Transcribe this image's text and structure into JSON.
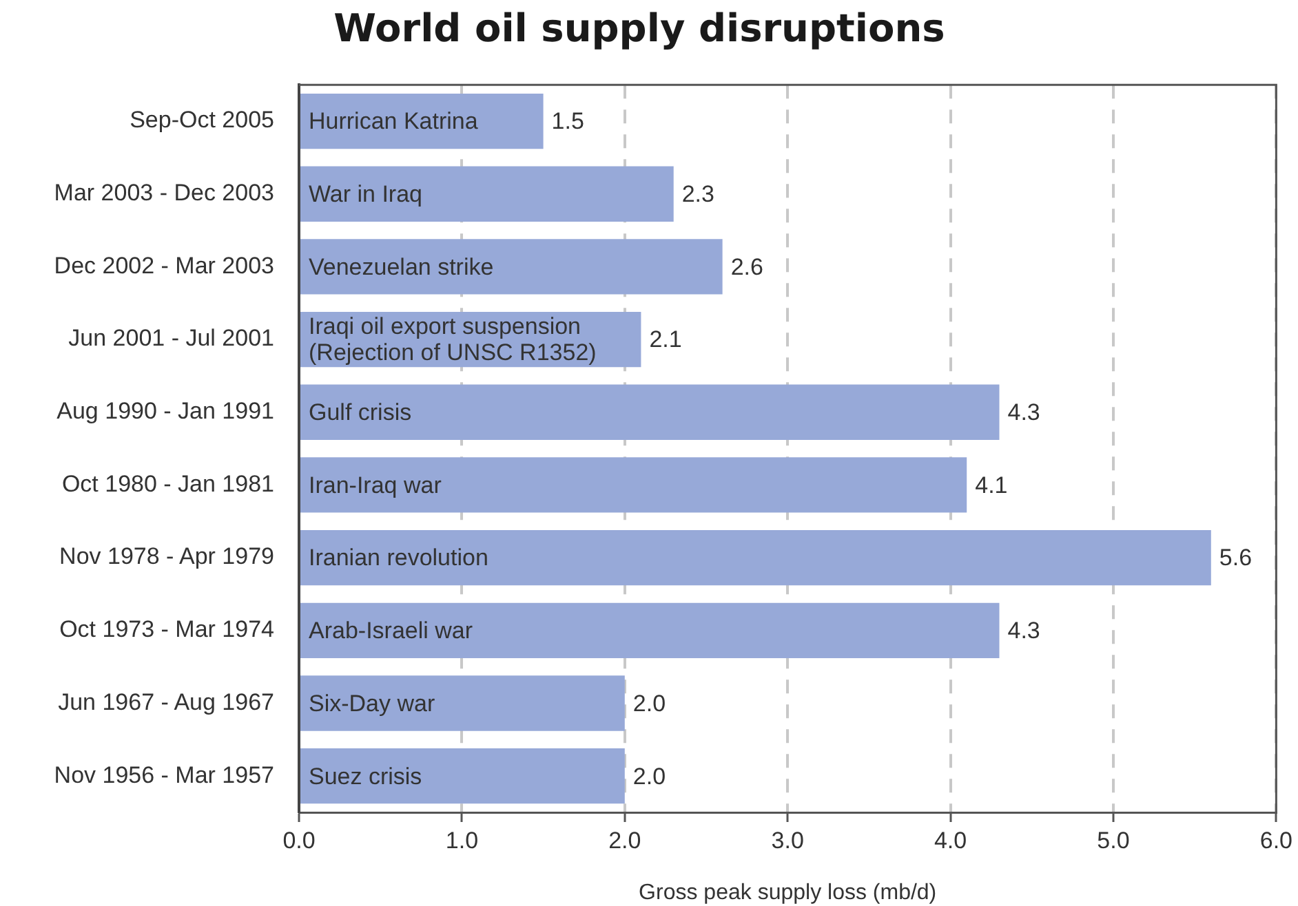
{
  "chart_data": {
    "type": "bar",
    "orientation": "horizontal",
    "title": "World oil supply disruptions",
    "xlabel": "Gross peak supply loss (mb/d)",
    "categories": [
      "Sep-Oct 2005",
      "Mar 2003 - Dec 2003",
      "Dec 2002 - Mar 2003",
      "Jun 2001 - Jul 2001",
      "Aug 1990 - Jan 1991",
      "Oct 1980 - Jan 1981",
      "Nov 1978 - Apr 1979",
      "Oct 1973 - Mar 1974",
      "Jun 1967 - Aug 1967",
      "Nov 1956 - Mar 1957"
    ],
    "values": [
      1.5,
      2.3,
      2.6,
      2.1,
      4.3,
      4.1,
      5.6,
      4.3,
      2.0,
      2.0
    ],
    "value_labels": [
      "1.5",
      "2.3",
      "2.6",
      "2.1",
      "4.3",
      "4.1",
      "5.6",
      "4.3",
      "2.0",
      "2.0"
    ],
    "color": "#97a9d8",
    "xlim": [
      0,
      6
    ],
    "xticks": [
      {
        "value": 0,
        "label": "0.0"
      },
      {
        "value": 1,
        "label": "1.0"
      },
      {
        "value": 2,
        "label": "2.0"
      },
      {
        "value": 3,
        "label": "3.0"
      },
      {
        "value": 4,
        "label": "4.0"
      },
      {
        "value": 5,
        "label": "5.0"
      },
      {
        "value": 6,
        "label": "6.0"
      }
    ],
    "grid": "x",
    "legend": false,
    "annotations": [
      {
        "text": "Hurrican Katrina",
        "y": "Sep-Oct 2005"
      },
      {
        "text": "War in Iraq",
        "y": "Mar 2003 - Dec 2003"
      },
      {
        "text": "Venezuelan strike",
        "y": "Dec 2002 - Mar 2003"
      },
      {
        "text": "Iraqi oil export suspension\n(Rejection of UNSC R1352)",
        "y": "Jun 2001 - Jul 2001"
      },
      {
        "text": "Gulf crisis",
        "y": "Aug 1990 - Jan 1991"
      },
      {
        "text": "Iran-Iraq war",
        "y": "Oct 1980 - Jan 1981"
      },
      {
        "text": "Iranian revolution",
        "y": "Nov 1978 - Apr 1979"
      },
      {
        "text": "Arab-Israeli war",
        "y": "Oct 1973 - Mar 1974"
      },
      {
        "text": "Six-Day war",
        "y": "Jun 1967 - Aug 1967"
      },
      {
        "text": "Suez crisis",
        "y": "Nov 1956 - Mar 1957"
      }
    ]
  }
}
